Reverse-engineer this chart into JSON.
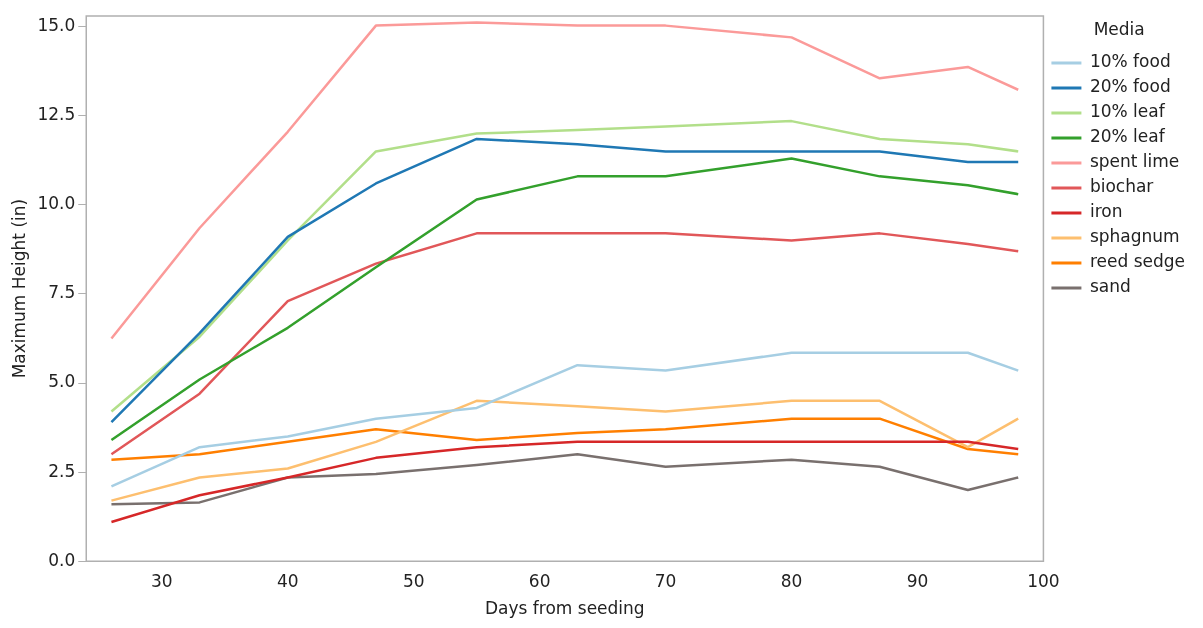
{
  "chart_data": {
    "type": "line",
    "xlabel": "Days from seeding",
    "ylabel": "Maximum Height (in)",
    "legend_title": "Media",
    "legend": "right",
    "grid": false,
    "marker": "none",
    "line_style": "solid",
    "x": [
      26,
      33,
      40,
      47,
      55,
      63,
      70,
      80,
      87,
      94,
      98
    ],
    "xlim": [
      24,
      100
    ],
    "xticks": [
      30,
      40,
      50,
      60,
      70,
      80,
      90,
      100
    ],
    "ylim": [
      0,
      15.3
    ],
    "yticks": [
      {
        "value": 0,
        "label": "0.0"
      },
      {
        "value": 2.5,
        "label": "2.5"
      },
      {
        "value": 5,
        "label": "5.0"
      },
      {
        "value": 7.5,
        "label": "7.5"
      },
      {
        "value": 10,
        "label": "10.0"
      },
      {
        "value": 12.5,
        "label": "12.5"
      },
      {
        "value": 15,
        "label": "15.0"
      }
    ],
    "series": [
      {
        "name": "10% food",
        "color": "#a6cee3",
        "values": [
          2.1,
          3.2,
          3.5,
          4.0,
          4.3,
          5.5,
          5.35,
          5.85,
          5.85,
          5.85,
          5.35
        ]
      },
      {
        "name": "20% food",
        "color": "#1f78b4",
        "values": [
          3.9,
          6.4,
          9.1,
          10.6,
          11.85,
          11.7,
          11.5,
          11.5,
          11.5,
          11.2,
          11.2
        ]
      },
      {
        "name": "10% leaf",
        "color": "#b2df8a",
        "values": [
          4.2,
          6.3,
          9.0,
          11.5,
          12.0,
          12.1,
          12.2,
          12.35,
          11.85,
          11.7,
          11.5
        ]
      },
      {
        "name": "20% leaf",
        "color": "#33a02c",
        "values": [
          3.4,
          5.1,
          6.55,
          8.25,
          10.15,
          10.8,
          10.8,
          11.3,
          10.8,
          10.55,
          10.3
        ]
      },
      {
        "name": "spent lime",
        "color": "#fb9a99",
        "values": [
          6.25,
          9.35,
          12.05,
          15.03,
          15.12,
          15.03,
          15.03,
          14.7,
          13.55,
          13.87,
          13.23
        ]
      },
      {
        "name": "biochar",
        "color": "#e15759",
        "values": [
          3.0,
          4.7,
          7.3,
          8.35,
          9.2,
          9.2,
          9.2,
          9.0,
          9.2,
          8.9,
          8.7
        ]
      },
      {
        "name": "iron",
        "color": "#d62728",
        "values": [
          1.1,
          1.85,
          2.35,
          2.9,
          3.2,
          3.35,
          3.35,
          3.35,
          3.35,
          3.35,
          3.15
        ]
      },
      {
        "name": "sphagnum",
        "color": "#fdbf6f",
        "values": [
          1.7,
          2.35,
          2.6,
          3.35,
          4.5,
          4.35,
          4.2,
          4.5,
          4.5,
          3.2,
          4.0
        ]
      },
      {
        "name": "reed sedge",
        "color": "#ff7f00",
        "values": [
          2.85,
          3.0,
          3.35,
          3.7,
          3.4,
          3.6,
          3.7,
          4.0,
          4.0,
          3.15,
          3.0
        ]
      },
      {
        "name": "sand",
        "color": "#79706e",
        "values": [
          1.6,
          1.65,
          2.35,
          2.45,
          2.7,
          3.0,
          2.65,
          2.85,
          2.65,
          2.0,
          2.35
        ]
      }
    ]
  }
}
